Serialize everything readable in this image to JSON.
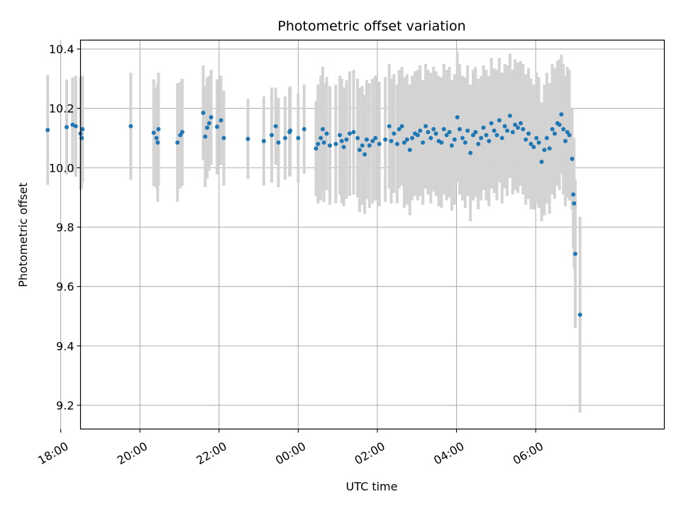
{
  "chart_data": {
    "type": "scatter",
    "title": "Photometric offset variation",
    "xlabel": "UTC time",
    "ylabel": "Photometric offset",
    "x_unit": "hours, relative to 00:00 UTC (x axis labels are clock times)",
    "xlim": [
      -5.5,
      9.25
    ],
    "ylim": [
      9.12,
      10.43
    ],
    "x_ticks": [
      -6,
      -4,
      -2,
      0,
      2,
      4,
      6
    ],
    "x_tick_labels": [
      "18:00",
      "20:00",
      "22:00",
      "00:00",
      "02:00",
      "04:00",
      "06:00"
    ],
    "y_ticks": [
      9.2,
      9.4,
      9.6,
      9.8,
      10.0,
      10.2,
      10.4
    ],
    "y_tick_labels": [
      "9.2",
      "9.4",
      "9.6",
      "9.8",
      "10.0",
      "10.2",
      "10.4"
    ],
    "grid": true,
    "colors": {
      "marker": "#1f77b4",
      "errorbar": "#d3d3d3",
      "grid": "#b0b0b0"
    },
    "series": [
      {
        "x": [
          -6.33,
          -5.85,
          -5.7,
          -5.62,
          -5.5,
          -5.47,
          -5.45,
          -4.23,
          -3.65,
          -3.58,
          -3.55,
          -3.53,
          -3.05,
          -2.98,
          -2.93,
          -2.4,
          -2.35,
          -2.3,
          -2.25,
          -2.2,
          -2.05,
          -1.95,
          -1.88,
          -1.27,
          -0.87,
          -0.67,
          -0.57,
          -0.5,
          -0.33,
          -0.22,
          -0.2,
          0.0,
          0.15
        ],
        "y": [
          10.127,
          10.137,
          10.145,
          10.14,
          10.115,
          10.1,
          10.13,
          10.14,
          10.118,
          10.1,
          10.085,
          10.13,
          10.085,
          10.11,
          10.12,
          10.185,
          10.105,
          10.135,
          10.15,
          10.17,
          10.138,
          10.16,
          10.1,
          10.097,
          10.09,
          10.11,
          10.14,
          10.085,
          10.1,
          10.12,
          10.125,
          10.1,
          10.13
        ],
        "yerr": [
          0.185,
          0.16,
          0.16,
          0.17,
          0.19,
          0.17,
          0.18,
          0.18,
          0.18,
          0.17,
          0.2,
          0.19,
          0.2,
          0.18,
          0.18,
          0.16,
          0.17,
          0.17,
          0.16,
          0.16,
          0.16,
          0.15,
          0.16,
          0.135,
          0.15,
          0.16,
          0.13,
          0.15,
          0.14,
          0.15,
          0.15,
          0.15,
          0.15
        ]
      },
      {
        "x": [
          0.45,
          0.5,
          0.57,
          0.62,
          0.65,
          0.72,
          0.8,
          0.95,
          1.05,
          1.1,
          1.15,
          1.22,
          1.3,
          1.4,
          1.5,
          1.55,
          1.62,
          1.68,
          1.73,
          1.8,
          1.88,
          1.95,
          2.05,
          2.2,
          2.3,
          2.35,
          2.42,
          2.5,
          2.55,
          2.62,
          2.68,
          2.75,
          2.82,
          2.88,
          2.95,
          3.02,
          3.08,
          3.15,
          3.22,
          3.28,
          3.35,
          3.42,
          3.48,
          3.55,
          3.62,
          3.68,
          3.75,
          3.82,
          3.88,
          3.95,
          4.02,
          4.08,
          4.15,
          4.22,
          4.28,
          4.35,
          4.42,
          4.48,
          4.55,
          4.62,
          4.68,
          4.75,
          4.82,
          4.88,
          4.95,
          5.02,
          5.08,
          5.15,
          5.22,
          5.28,
          5.35,
          5.42,
          5.48,
          5.55,
          5.62,
          5.68,
          5.75,
          5.82,
          5.88,
          5.95,
          6.02,
          6.08,
          6.15,
          6.22,
          6.28,
          6.35,
          6.42,
          6.48,
          6.55,
          6.6,
          6.65,
          6.7,
          6.75,
          6.8,
          6.85
        ],
        "y": [
          10.065,
          10.08,
          10.1,
          10.13,
          10.085,
          10.115,
          10.075,
          10.08,
          10.11,
          10.09,
          10.07,
          10.095,
          10.115,
          10.12,
          10.1,
          10.06,
          10.075,
          10.045,
          10.095,
          10.075,
          10.09,
          10.1,
          10.08,
          10.095,
          10.14,
          10.09,
          10.115,
          10.08,
          10.13,
          10.14,
          10.085,
          10.095,
          10.06,
          10.1,
          10.115,
          10.11,
          10.125,
          10.085,
          10.14,
          10.12,
          10.1,
          10.13,
          10.115,
          10.09,
          10.085,
          10.13,
          10.11,
          10.12,
          10.075,
          10.095,
          10.17,
          10.13,
          10.1,
          10.085,
          10.125,
          10.05,
          10.11,
          10.12,
          10.08,
          10.1,
          10.135,
          10.11,
          10.09,
          10.15,
          10.125,
          10.11,
          10.16,
          10.1,
          10.14,
          10.125,
          10.175,
          10.12,
          10.145,
          10.135,
          10.15,
          10.13,
          10.095,
          10.115,
          10.08,
          10.07,
          10.1,
          10.085,
          10.02,
          10.06,
          10.1,
          10.065,
          10.13,
          10.115,
          10.15,
          10.145,
          10.18,
          10.13,
          10.09,
          10.12,
          10.11
        ],
        "yerr": [
          0.16,
          0.2,
          0.21,
          0.21,
          0.2,
          0.19,
          0.2,
          0.2,
          0.2,
          0.21,
          0.2,
          0.2,
          0.21,
          0.21,
          0.2,
          0.21,
          0.2,
          0.2,
          0.2,
          0.21,
          0.21,
          0.21,
          0.21,
          0.21,
          0.21,
          0.21,
          0.2,
          0.2,
          0.2,
          0.2,
          0.22,
          0.22,
          0.22,
          0.21,
          0.21,
          0.22,
          0.22,
          0.21,
          0.21,
          0.21,
          0.22,
          0.21,
          0.21,
          0.22,
          0.22,
          0.22,
          0.22,
          0.22,
          0.22,
          0.22,
          0.22,
          0.22,
          0.21,
          0.22,
          0.22,
          0.23,
          0.22,
          0.22,
          0.22,
          0.21,
          0.21,
          0.22,
          0.22,
          0.22,
          0.21,
          0.22,
          0.21,
          0.22,
          0.21,
          0.22,
          0.21,
          0.21,
          0.22,
          0.22,
          0.21,
          0.22,
          0.22,
          0.22,
          0.22,
          0.21,
          0.22,
          0.22,
          0.2,
          0.22,
          0.22,
          0.22,
          0.22,
          0.22,
          0.21,
          0.22,
          0.2,
          0.22,
          0.22,
          0.22,
          0.22
        ]
      },
      {
        "x": [
          6.92,
          6.95,
          6.97,
          7.0,
          7.12
        ],
        "y": [
          10.03,
          9.91,
          9.88,
          9.71,
          9.505
        ],
        "yerr": [
          0.17,
          0.18,
          0.22,
          0.25,
          0.33
        ]
      }
    ]
  }
}
